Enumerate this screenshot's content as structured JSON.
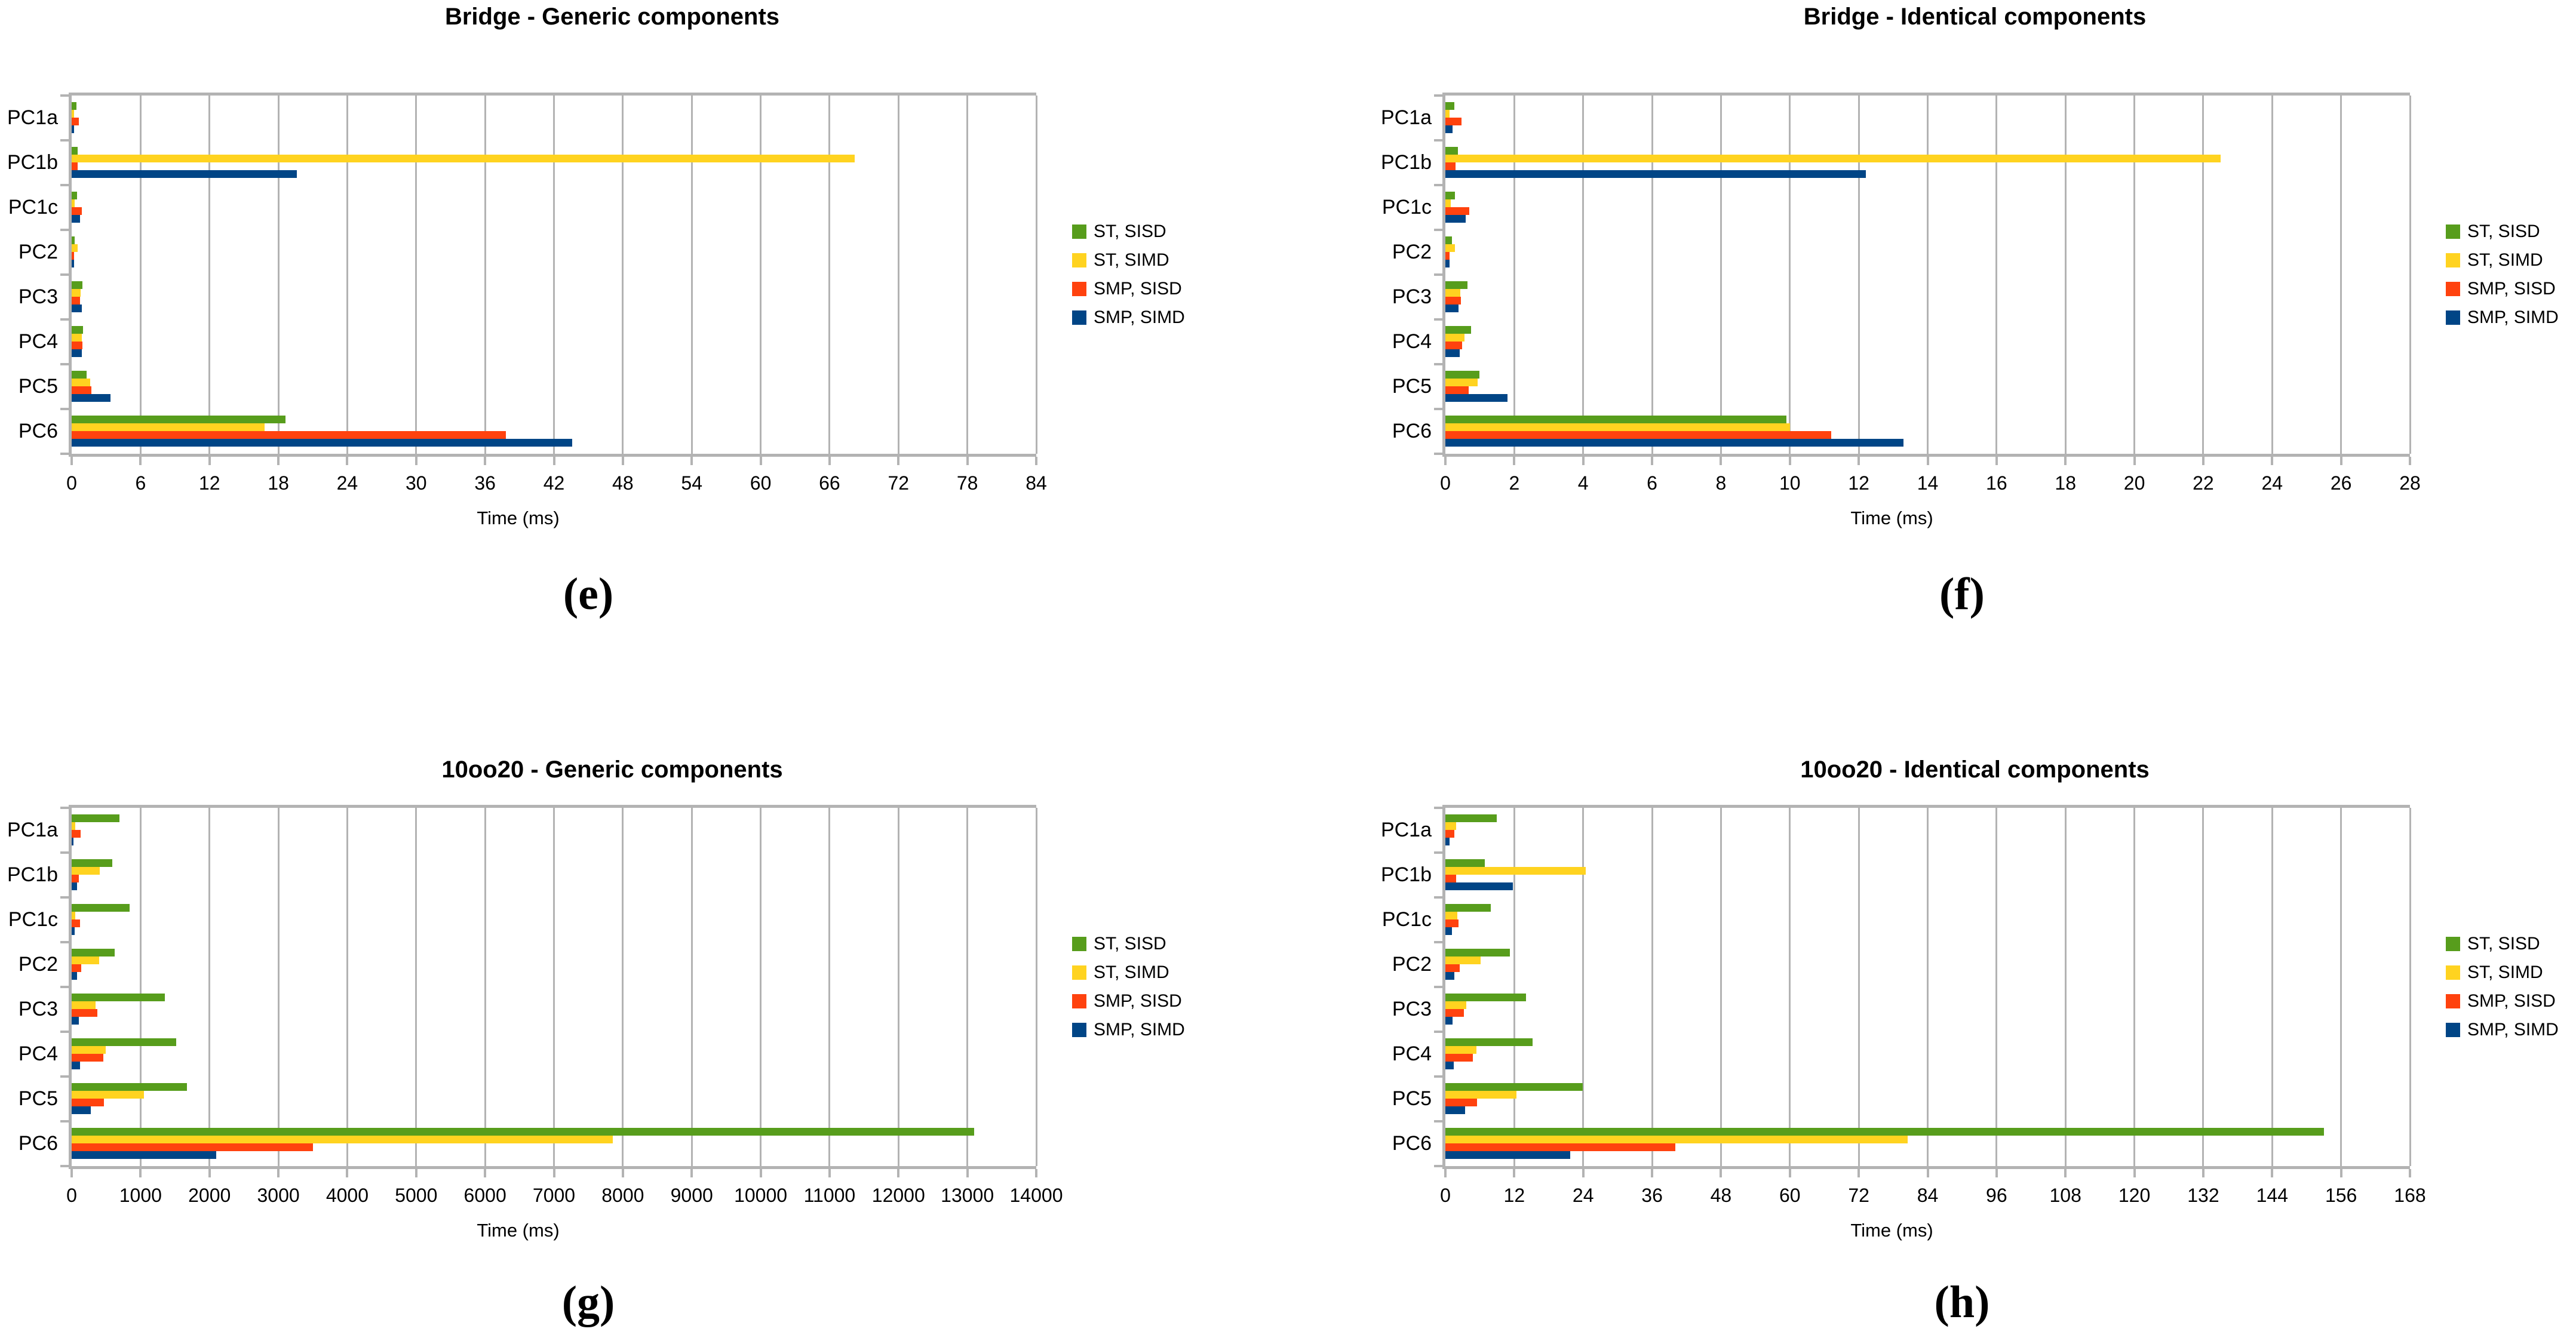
{
  "page": {
    "background": "#ffffff",
    "grid_color": "#b3b3b3"
  },
  "chart_data": [
    {
      "id": "e",
      "type": "bar",
      "orientation": "horizontal",
      "title": "Bridge - Generic components",
      "caption": "(e)",
      "xlabel": "Time (ms)",
      "categories": [
        "PC1a",
        "PC1b",
        "PC1c",
        "PC2",
        "PC3",
        "PC4",
        "PC5",
        "PC6"
      ],
      "xlim": [
        0,
        84
      ],
      "xticks": [
        0,
        6,
        12,
        18,
        24,
        30,
        36,
        42,
        48,
        54,
        60,
        66,
        72,
        78,
        84
      ],
      "grid": true,
      "legend_position": "right",
      "series": [
        {
          "name": "ST, SISD",
          "color": "#579D1C",
          "values": [
            0.4,
            0.5,
            0.45,
            0.25,
            0.95,
            1.0,
            1.3,
            18.6
          ]
        },
        {
          "name": "ST, SIMD",
          "color": "#FFD320",
          "values": [
            0.2,
            68.2,
            0.25,
            0.5,
            0.8,
            0.9,
            1.6,
            16.8
          ]
        },
        {
          "name": "SMP, SISD",
          "color": "#FF420E",
          "values": [
            0.65,
            0.5,
            0.9,
            0.2,
            0.75,
            0.95,
            1.7,
            37.8
          ]
        },
        {
          "name": "SMP, SIMD",
          "color": "#004586",
          "values": [
            0.2,
            19.6,
            0.75,
            0.2,
            0.9,
            0.9,
            3.4,
            43.6
          ]
        }
      ]
    },
    {
      "id": "f",
      "type": "bar",
      "orientation": "horizontal",
      "title": "Bridge - Identical components",
      "caption": "(f)",
      "xlabel": "Time (ms)",
      "categories": [
        "PC1a",
        "PC1b",
        "PC1c",
        "PC2",
        "PC3",
        "PC4",
        "PC5",
        "PC6"
      ],
      "xlim": [
        0,
        28
      ],
      "xticks": [
        0,
        2,
        4,
        6,
        8,
        10,
        12,
        14,
        16,
        18,
        20,
        22,
        24,
        26,
        28
      ],
      "grid": true,
      "legend_position": "right",
      "series": [
        {
          "name": "ST, SISD",
          "color": "#579D1C",
          "values": [
            0.26,
            0.36,
            0.27,
            0.19,
            0.64,
            0.74,
            0.99,
            9.9
          ]
        },
        {
          "name": "ST, SIMD",
          "color": "#FFD320",
          "values": [
            0.13,
            22.5,
            0.16,
            0.27,
            0.43,
            0.56,
            0.94,
            10.0
          ]
        },
        {
          "name": "SMP, SISD",
          "color": "#FF420E",
          "values": [
            0.46,
            0.3,
            0.7,
            0.12,
            0.45,
            0.48,
            0.68,
            11.2
          ]
        },
        {
          "name": "SMP, SIMD",
          "color": "#004586",
          "values": [
            0.2,
            12.2,
            0.59,
            0.13,
            0.38,
            0.41,
            1.8,
            13.3
          ]
        }
      ]
    },
    {
      "id": "g",
      "type": "bar",
      "orientation": "horizontal",
      "title": "10oo20 - Generic components",
      "caption": "(g)",
      "xlabel": "Time (ms)",
      "categories": [
        "PC1a",
        "PC1b",
        "PC1c",
        "PC2",
        "PC3",
        "PC4",
        "PC5",
        "PC6"
      ],
      "xlim": [
        0,
        14000
      ],
      "xticks": [
        0,
        1000,
        2000,
        3000,
        4000,
        5000,
        6000,
        7000,
        8000,
        9000,
        10000,
        11000,
        12000,
        13000,
        14000
      ],
      "grid": true,
      "legend_position": "right",
      "series": [
        {
          "name": "ST, SISD",
          "color": "#579D1C",
          "values": [
            690,
            590,
            840,
            625,
            1350,
            1520,
            1670,
            13100
          ]
        },
        {
          "name": "ST, SIMD",
          "color": "#FFD320",
          "values": [
            50,
            410,
            50,
            400,
            350,
            490,
            1050,
            7850
          ]
        },
        {
          "name": "SMP, SISD",
          "color": "#FF420E",
          "values": [
            130,
            100,
            120,
            140,
            370,
            460,
            465,
            3500
          ]
        },
        {
          "name": "SMP, SIMD",
          "color": "#004586",
          "values": [
            25,
            80,
            40,
            80,
            100,
            120,
            280,
            2100
          ]
        }
      ]
    },
    {
      "id": "h",
      "type": "bar",
      "orientation": "horizontal",
      "title": "10oo20 - Identical components",
      "caption": "(h)",
      "xlabel": "Time (ms)",
      "categories": [
        "PC1a",
        "PC1b",
        "PC1c",
        "PC2",
        "PC3",
        "PC4",
        "PC5",
        "PC6"
      ],
      "xlim": [
        0,
        168
      ],
      "xticks": [
        0,
        12,
        24,
        36,
        48,
        60,
        72,
        84,
        96,
        108,
        120,
        132,
        144,
        156,
        168
      ],
      "grid": true,
      "legend_position": "right",
      "series": [
        {
          "name": "ST, SISD",
          "color": "#579D1C",
          "values": [
            8.9,
            6.9,
            7.9,
            11.2,
            14.0,
            15.2,
            23.9,
            153
          ]
        },
        {
          "name": "ST, SIMD",
          "color": "#FFD320",
          "values": [
            1.9,
            24.4,
            2.1,
            6.1,
            3.6,
            5.4,
            12.4,
            80.5
          ]
        },
        {
          "name": "SMP, SISD",
          "color": "#FF420E",
          "values": [
            1.6,
            1.9,
            2.3,
            2.5,
            3.2,
            4.8,
            5.5,
            40
          ]
        },
        {
          "name": "SMP, SIMD",
          "color": "#004586",
          "values": [
            0.7,
            11.8,
            1.15,
            1.6,
            1.2,
            1.5,
            3.4,
            21.7
          ]
        }
      ]
    }
  ]
}
